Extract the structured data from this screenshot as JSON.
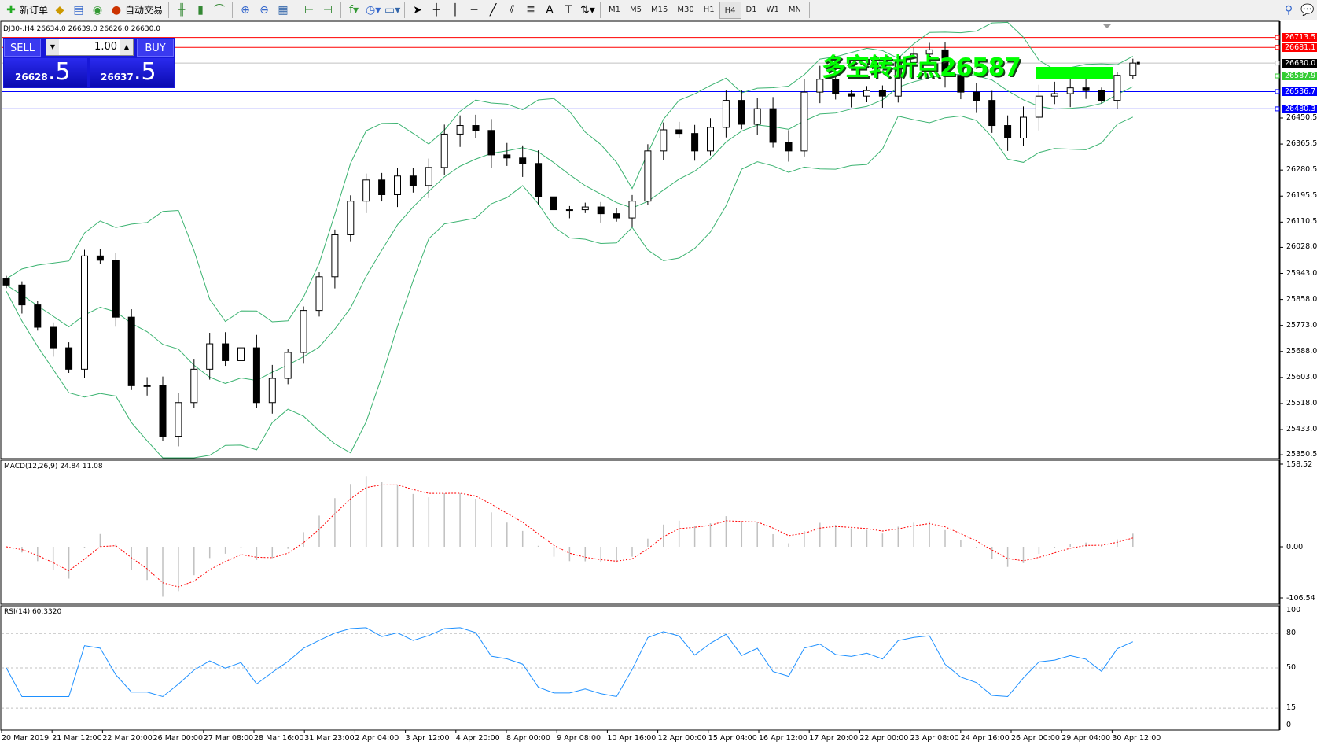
{
  "toolbar": {
    "new_order": "新订单",
    "auto_trading": "自动交易",
    "timeframes": [
      "M1",
      "M5",
      "M15",
      "M30",
      "H1",
      "H4",
      "D1",
      "W1",
      "MN"
    ],
    "selected_timeframe": "H4"
  },
  "chart": {
    "legend": "DJ30-,H4  26634.0 26639.0 26626.0 26630.0",
    "annotation": "多空转折点26587",
    "annotation_color": "#00ff00"
  },
  "trade_panel": {
    "sell_label": "SELL",
    "buy_label": "BUY",
    "lot": "1.00",
    "sell_price_main": "26628",
    "sell_price_big": ".5",
    "buy_price_main": "26637",
    "buy_price_big": ".5"
  },
  "chart_data": {
    "type": "candlestick",
    "symbol": "DJ30-",
    "timeframe": "H4",
    "close": [
      25905,
      25840,
      25767,
      25700,
      25630,
      26000,
      25986,
      25800,
      25576,
      25576,
      25411,
      25521,
      25630,
      25713,
      25658,
      25700,
      25521,
      25600,
      25685,
      25822,
      25932,
      26069,
      26179,
      26248,
      26200,
      26261,
      26230,
      26289,
      26398,
      26426,
      26410,
      26330,
      26320,
      26302,
      26193,
      26151,
      26151,
      26160,
      26138,
      26124,
      26179,
      26343,
      26412,
      26400,
      26343,
      26420,
      26508,
      26430,
      26481,
      26371,
      26343,
      26535,
      26577,
      26530,
      26522,
      26540,
      26522,
      26632,
      26659,
      26673,
      26590,
      26535,
      26508,
      26426,
      26385,
      26453,
      26522,
      26530,
      26549,
      26540,
      26508,
      26590,
      26630
    ],
    "price_ticks": [
      "26450.5",
      "26365.5",
      "26280.5",
      "26195.5",
      "26110.5",
      "26028.0",
      "25943.0",
      "25858.0",
      "25773.0",
      "25688.0",
      "25603.0",
      "25518.0",
      "25433.0",
      "25350.5"
    ],
    "price_tick_values": [
      26450.5,
      26365.5,
      26280.5,
      26195.5,
      26110.5,
      26028.0,
      25943.0,
      25858.0,
      25773.0,
      25688.0,
      25603.0,
      25518.0,
      25433.0,
      25350.5
    ],
    "hlines": [
      {
        "price": 26713.5,
        "label": "26713.5",
        "color": "#ff0000"
      },
      {
        "price": 26681.1,
        "label": "26681.1",
        "color": "#ff0000"
      },
      {
        "price": 26630.0,
        "label": "26630.0",
        "color": "#000000"
      },
      {
        "price": 26587.9,
        "label": "26587.9",
        "color": "#33cc33"
      },
      {
        "price": 26536.7,
        "label": "26536.7",
        "color": "#0000ff"
      },
      {
        "price": 26480.3,
        "label": "26480.3",
        "color": "#0000ff"
      }
    ],
    "time_labels": [
      "20 Mar 2019",
      "21 Mar 12:00",
      "22 Mar 20:00",
      "26 Mar 00:00",
      "27 Mar 08:00",
      "28 Mar 16:00",
      "31 Mar 23:00",
      "2 Apr 04:00",
      "3 Apr 12:00",
      "4 Apr 20:00",
      "8 Apr 00:00",
      "9 Apr 08:00",
      "10 Apr 16:00",
      "12 Apr 00:00",
      "15 Apr 04:00",
      "16 Apr 12:00",
      "17 Apr 20:00",
      "22 Apr 00:00",
      "23 Apr 08:00",
      "24 Apr 16:00",
      "26 Apr 00:00",
      "29 Apr 04:00",
      "30 Apr 12:00"
    ],
    "bands_color": "#3cb371",
    "macd": {
      "label": "MACD(12,26,9) 24.84 11.08",
      "ticks": [
        "158.52",
        "0.00",
        "-106.54"
      ],
      "range": [
        -106.54,
        158.52
      ],
      "signal_color": "#ff0000",
      "hist_color": "#c0c0c0"
    },
    "rsi": {
      "label": "RSI(14) 60.3320",
      "ticks": [
        "100",
        "80",
        "50",
        "15",
        "0"
      ],
      "levels": [
        80,
        50,
        15
      ],
      "color": "#1e90ff"
    }
  }
}
